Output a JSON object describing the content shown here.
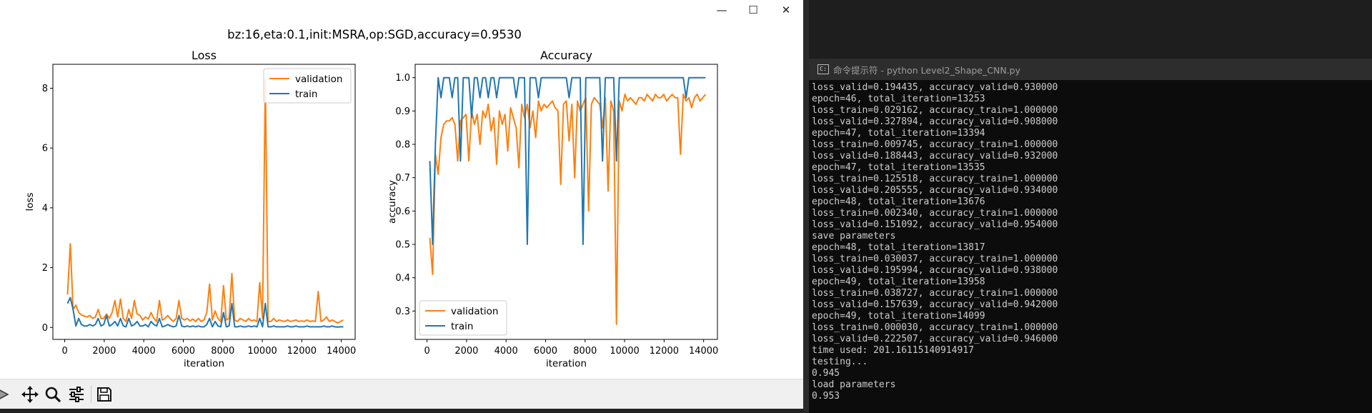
{
  "figure_window": {
    "controls": {
      "minimize": "—",
      "maximize": "☐",
      "close": "✕"
    },
    "suptitle": "bz:16,eta:0.1,init:MSRA,op:SGD,accuracy=0.9530",
    "toolbar": {
      "icons": [
        "forward-icon",
        "pan-icon",
        "zoom-icon",
        "configure-subplots-icon",
        "save-icon"
      ]
    }
  },
  "chart_data": [
    {
      "type": "line",
      "title": "Loss",
      "xlabel": "iteration",
      "ylabel": "loss",
      "xlim": [
        -600,
        14700
      ],
      "ylim": [
        -0.4,
        8.8
      ],
      "xticks": [
        0,
        2000,
        4000,
        6000,
        8000,
        10000,
        12000,
        14000
      ],
      "yticks": [
        0,
        2,
        4,
        6,
        8
      ],
      "legend": "top-right",
      "series": [
        {
          "name": "validation",
          "color": "#ff7f0e",
          "x": [
            141,
            282,
            423,
            564,
            705,
            846,
            987,
            1128,
            1269,
            1410,
            1551,
            1692,
            1833,
            1974,
            2115,
            2256,
            2397,
            2538,
            2679,
            2820,
            2961,
            3102,
            3243,
            3384,
            3525,
            3666,
            3807,
            3948,
            4089,
            4230,
            4371,
            4512,
            4653,
            4794,
            4935,
            5076,
            5217,
            5358,
            5499,
            5640,
            5781,
            5922,
            6063,
            6204,
            6345,
            6486,
            6627,
            6768,
            6909,
            7050,
            7191,
            7332,
            7473,
            7614,
            7755,
            7896,
            8037,
            8178,
            8319,
            8460,
            8601,
            8742,
            8883,
            9024,
            9165,
            9306,
            9447,
            9588,
            9729,
            9870,
            10011,
            10152,
            10293,
            10434,
            10575,
            10716,
            10857,
            10998,
            11139,
            11280,
            11421,
            11562,
            11703,
            11844,
            11985,
            12126,
            12267,
            12408,
            12549,
            12690,
            12831,
            12972,
            13113,
            13254,
            13395,
            13536,
            13677,
            13818,
            13959,
            14100
          ],
          "values": [
            1.1,
            2.8,
            0.6,
            0.75,
            0.5,
            0.42,
            0.38,
            0.35,
            0.4,
            0.3,
            0.35,
            0.6,
            0.3,
            0.3,
            0.45,
            0.3,
            0.5,
            0.9,
            0.35,
            0.95,
            0.3,
            0.2,
            0.6,
            0.3,
            0.9,
            0.45,
            0.4,
            0.25,
            0.35,
            0.28,
            0.5,
            0.3,
            0.2,
            0.9,
            0.25,
            0.3,
            0.4,
            0.28,
            0.2,
            0.3,
            0.9,
            0.3,
            0.25,
            0.3,
            0.22,
            0.28,
            0.2,
            0.3,
            0.2,
            0.25,
            0.5,
            1.45,
            0.25,
            0.55,
            0.3,
            0.2,
            1.4,
            0.25,
            0.3,
            1.8,
            0.25,
            0.2,
            0.3,
            0.25,
            0.2,
            0.3,
            0.22,
            0.25,
            0.2,
            1.5,
            0.3,
            8.3,
            0.2,
            0.2,
            0.3,
            0.2,
            0.25,
            0.22,
            0.2,
            0.25,
            0.2,
            0.22,
            0.25,
            0.2,
            0.22,
            0.2,
            0.25,
            0.2,
            0.22,
            0.2,
            1.2,
            0.2,
            0.25,
            0.35,
            0.2,
            0.25,
            0.2,
            0.15,
            0.2,
            0.25
          ]
        },
        {
          "name": "train",
          "color": "#1f77b4",
          "x": [
            141,
            282,
            423,
            564,
            705,
            846,
            987,
            1128,
            1269,
            1410,
            1551,
            1692,
            1833,
            1974,
            2115,
            2256,
            2397,
            2538,
            2679,
            2820,
            2961,
            3102,
            3243,
            3384,
            3525,
            3666,
            3807,
            3948,
            4089,
            4230,
            4371,
            4512,
            4653,
            4794,
            4935,
            5076,
            5217,
            5358,
            5499,
            5640,
            5781,
            5922,
            6063,
            6204,
            6345,
            6486,
            6627,
            6768,
            6909,
            7050,
            7191,
            7332,
            7473,
            7614,
            7755,
            7896,
            8037,
            8178,
            8319,
            8460,
            8601,
            8742,
            8883,
            9024,
            9165,
            9306,
            9447,
            9588,
            9729,
            9870,
            10011,
            10152,
            10293,
            10434,
            10575,
            10716,
            10857,
            10998,
            11139,
            11280,
            11421,
            11562,
            11703,
            11844,
            11985,
            12126,
            12267,
            12408,
            12549,
            12690,
            12831,
            12972,
            13113,
            13254,
            13395,
            13536,
            13677,
            13818,
            13959,
            14100
          ],
          "values": [
            0.8,
            1.0,
            0.6,
            0.05,
            0.3,
            0.1,
            0.05,
            0.05,
            0.1,
            0.05,
            0.1,
            0.3,
            0.05,
            0.1,
            0.4,
            0.05,
            0.1,
            0.2,
            0.05,
            0.3,
            0.05,
            0.02,
            0.3,
            0.05,
            0.1,
            0.2,
            0.05,
            0.05,
            0.1,
            0.02,
            0.2,
            0.1,
            0.05,
            0.3,
            0.02,
            0.05,
            0.1,
            0.05,
            0.02,
            0.05,
            0.4,
            0.05,
            0.02,
            0.05,
            0.02,
            0.05,
            0.02,
            0.05,
            0.02,
            0.02,
            0.1,
            0.3,
            0.02,
            0.2,
            0.05,
            0.02,
            0.5,
            0.02,
            0.05,
            0.8,
            0.02,
            0.02,
            0.05,
            0.02,
            0.02,
            0.05,
            0.02,
            0.05,
            0.02,
            0.3,
            0.02,
            0.8,
            0.02,
            0.02,
            0.05,
            0.02,
            0.02,
            0.02,
            0.02,
            0.05,
            0.02,
            0.02,
            0.05,
            0.02,
            0.02,
            0.02,
            0.05,
            0.02,
            0.02,
            0.02,
            0.02,
            0.02,
            0.05,
            0.02,
            0.02,
            0.05,
            0.02,
            0.01,
            0.02,
            0.02
          ]
        }
      ]
    },
    {
      "type": "line",
      "title": "Accuracy",
      "xlabel": "iteration",
      "ylabel": "accuracy",
      "xlim": [
        -600,
        14700
      ],
      "ylim": [
        0.215,
        1.04
      ],
      "xticks": [
        0,
        2000,
        4000,
        6000,
        8000,
        10000,
        12000,
        14000
      ],
      "yticks": [
        0.3,
        0.4,
        0.5,
        0.6,
        0.7,
        0.8,
        0.9,
        1.0
      ],
      "legend": "bottom-left",
      "series": [
        {
          "name": "validation",
          "color": "#ff7f0e",
          "x": [
            141,
            282,
            423,
            564,
            705,
            846,
            987,
            1128,
            1269,
            1410,
            1551,
            1692,
            1833,
            1974,
            2115,
            2256,
            2397,
            2538,
            2679,
            2820,
            2961,
            3102,
            3243,
            3384,
            3525,
            3666,
            3807,
            3948,
            4089,
            4230,
            4371,
            4512,
            4653,
            4794,
            4935,
            5076,
            5217,
            5358,
            5499,
            5640,
            5781,
            5922,
            6063,
            6204,
            6345,
            6486,
            6627,
            6768,
            6909,
            7050,
            7191,
            7332,
            7473,
            7614,
            7755,
            7896,
            8037,
            8178,
            8319,
            8460,
            8601,
            8742,
            8883,
            9024,
            9165,
            9306,
            9447,
            9588,
            9729,
            9870,
            10011,
            10152,
            10293,
            10434,
            10575,
            10716,
            10857,
            10998,
            11139,
            11280,
            11421,
            11562,
            11703,
            11844,
            11985,
            12126,
            12267,
            12408,
            12549,
            12690,
            12831,
            12972,
            13113,
            13254,
            13395,
            13536,
            13677,
            13818,
            13959,
            14100
          ],
          "values": [
            0.52,
            0.41,
            0.77,
            0.71,
            0.82,
            0.86,
            0.87,
            0.87,
            0.88,
            0.86,
            0.75,
            0.87,
            0.88,
            0.89,
            0.75,
            0.9,
            0.86,
            0.89,
            0.8,
            0.9,
            0.88,
            0.92,
            0.84,
            0.88,
            0.74,
            0.9,
            0.86,
            0.89,
            0.78,
            0.91,
            0.88,
            0.85,
            0.73,
            0.92,
            0.88,
            0.92,
            0.85,
            0.9,
            0.82,
            0.93,
            0.9,
            0.92,
            0.91,
            0.92,
            0.93,
            0.91,
            0.9,
            0.68,
            0.92,
            0.93,
            0.81,
            0.92,
            0.7,
            0.93,
            0.9,
            0.92,
            0.94,
            0.6,
            0.92,
            0.94,
            0.93,
            0.92,
            0.85,
            0.94,
            0.66,
            0.93,
            0.9,
            0.26,
            0.93,
            0.9,
            0.95,
            0.93,
            0.94,
            0.93,
            0.92,
            0.94,
            0.94,
            0.93,
            0.95,
            0.94,
            0.93,
            0.95,
            0.94,
            0.94,
            0.95,
            0.93,
            0.94,
            0.95,
            0.94,
            0.94,
            0.77,
            0.95,
            0.93,
            0.94,
            0.91,
            0.94,
            0.95,
            0.93,
            0.94,
            0.95
          ]
        },
        {
          "name": "train",
          "color": "#1f77b4",
          "x": [
            141,
            282,
            423,
            564,
            705,
            846,
            987,
            1128,
            1269,
            1410,
            1551,
            1692,
            1833,
            1974,
            2115,
            2256,
            2397,
            2538,
            2679,
            2820,
            2961,
            3102,
            3243,
            3384,
            3525,
            3666,
            3807,
            3948,
            4089,
            4230,
            4371,
            4512,
            4653,
            4794,
            4935,
            5076,
            5217,
            5358,
            5499,
            5640,
            5781,
            5922,
            6063,
            6204,
            6345,
            6486,
            6627,
            6768,
            6909,
            7050,
            7191,
            7332,
            7473,
            7614,
            7755,
            7896,
            8037,
            8178,
            8319,
            8460,
            8601,
            8742,
            8883,
            9024,
            9165,
            9306,
            9447,
            9588,
            9729,
            9870,
            10011,
            10152,
            10293,
            10434,
            10575,
            10716,
            10857,
            10998,
            11139,
            11280,
            11421,
            11562,
            11703,
            11844,
            11985,
            12126,
            12267,
            12408,
            12549,
            12690,
            12831,
            12972,
            13113,
            13254,
            13395,
            13536,
            13677,
            13818,
            13959,
            14100
          ],
          "values": [
            0.75,
            0.5,
            0.8,
            1.0,
            0.94,
            1.0,
            1.0,
            1.0,
            0.94,
            1.0,
            1.0,
            0.75,
            1.0,
            1.0,
            1.0,
            0.88,
            1.0,
            1.0,
            0.94,
            1.0,
            1.0,
            0.94,
            1.0,
            1.0,
            0.94,
            1.0,
            1.0,
            1.0,
            1.0,
            1.0,
            1.0,
            0.94,
            1.0,
            1.0,
            1.0,
            0.5,
            1.0,
            1.0,
            1.0,
            0.94,
            1.0,
            1.0,
            1.0,
            1.0,
            1.0,
            1.0,
            1.0,
            1.0,
            1.0,
            1.0,
            0.94,
            1.0,
            1.0,
            1.0,
            1.0,
            0.5,
            1.0,
            1.0,
            1.0,
            1.0,
            1.0,
            1.0,
            0.75,
            1.0,
            1.0,
            1.0,
            1.0,
            0.75,
            1.0,
            1.0,
            1.0,
            1.0,
            1.0,
            1.0,
            1.0,
            1.0,
            1.0,
            1.0,
            1.0,
            1.0,
            1.0,
            1.0,
            1.0,
            1.0,
            1.0,
            1.0,
            1.0,
            1.0,
            1.0,
            1.0,
            1.0,
            1.0,
            0.94,
            1.0,
            1.0,
            1.0,
            1.0,
            1.0,
            1.0,
            1.0
          ]
        }
      ]
    }
  ],
  "cmd_window": {
    "title": "命令提示符 - python  Level2_Shape_CNN.py",
    "lines": [
      "loss_valid=0.194435, accuracy_valid=0.930000",
      "epoch=46, total_iteration=13253",
      "loss_train=0.029162, accuracy_train=1.000000",
      "loss_valid=0.327894, accuracy_valid=0.908000",
      "epoch=47, total_iteration=13394",
      "loss_train=0.009745, accuracy_train=1.000000",
      "loss_valid=0.188443, accuracy_valid=0.932000",
      "epoch=47, total_iteration=13535",
      "loss_train=0.125518, accuracy_train=1.000000",
      "loss_valid=0.205555, accuracy_valid=0.934000",
      "epoch=48, total_iteration=13676",
      "loss_train=0.002340, accuracy_train=1.000000",
      "loss_valid=0.151092, accuracy_valid=0.954000",
      "save parameters",
      "epoch=48, total_iteration=13817",
      "loss_train=0.030037, accuracy_train=1.000000",
      "loss_valid=0.195994, accuracy_valid=0.938000",
      "epoch=49, total_iteration=13958",
      "loss_train=0.038727, accuracy_train=1.000000",
      "loss_valid=0.157639, accuracy_valid=0.942000",
      "epoch=49, total_iteration=14099",
      "loss_train=0.000030, accuracy_train=1.000000",
      "loss_valid=0.222507, accuracy_valid=0.946000",
      "time used: 201.16115140914917",
      "testing...",
      "0.945",
      "load parameters",
      "0.953"
    ]
  }
}
